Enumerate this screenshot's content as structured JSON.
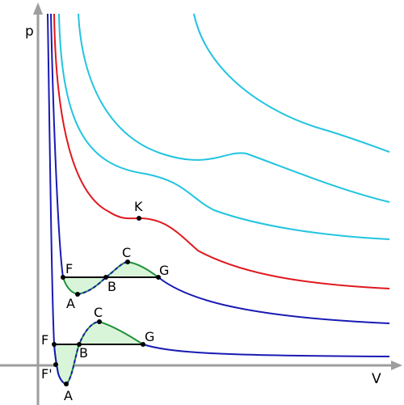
{
  "axes": {
    "y_label": "p",
    "x_label": "V"
  },
  "colors": {
    "axis": "#9e9e9e",
    "isotherm_above": "#22c4e0",
    "critical_isotherm": "#e0181e",
    "isotherm_below": "#1a1ab4",
    "tie_line": "#000000",
    "area_fill": "#d9f5d9",
    "area_edge": "#1f8f3a"
  },
  "points": {
    "critical": "K",
    "upper": {
      "F": "F",
      "A": "A",
      "B": "B",
      "C": "C",
      "G": "G"
    },
    "lower": {
      "F": "F",
      "F_prime": "F'",
      "A": "A",
      "B": "B",
      "C": "C",
      "G": "G"
    }
  }
}
